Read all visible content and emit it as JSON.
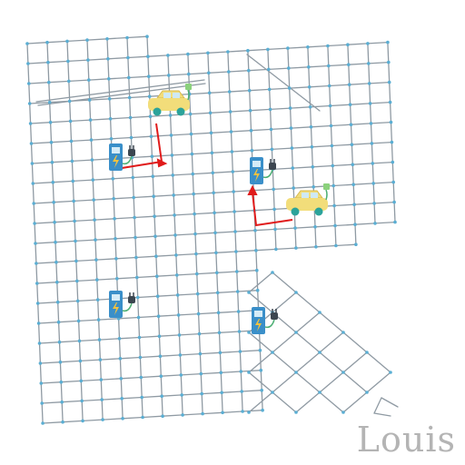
{
  "map": {
    "city_name": "Louis",
    "road_color": "#8f9aa3",
    "node_color": "#5aaed3",
    "route_color": "#e01b1b",
    "vehicles": [
      {
        "name": "ev-car-1",
        "icon": "ev-car-icon",
        "body_color": "#f2dd7a"
      },
      {
        "name": "ev-car-2",
        "icon": "ev-car-icon",
        "body_color": "#f2dd7a"
      }
    ],
    "charging_stations": [
      {
        "name": "charging-station-1",
        "icon": "charging-station-icon",
        "color": "#3a8fc9"
      },
      {
        "name": "charging-station-2",
        "icon": "charging-station-icon",
        "color": "#3a8fc9"
      },
      {
        "name": "charging-station-3",
        "icon": "charging-station-icon",
        "color": "#3a8fc9"
      },
      {
        "name": "charging-station-4",
        "icon": "charging-station-icon",
        "color": "#3a8fc9"
      }
    ]
  }
}
